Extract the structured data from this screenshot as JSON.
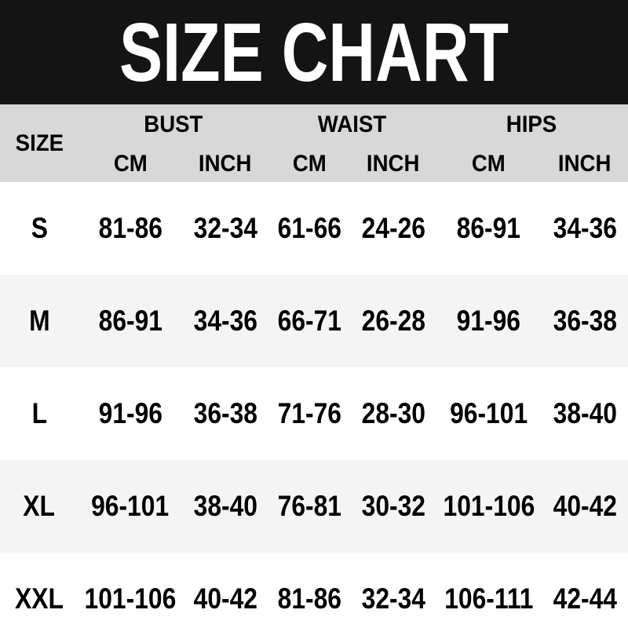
{
  "chart_data": {
    "type": "table",
    "title": "SIZE CHART",
    "header": {
      "size_label": "SIZE",
      "groups": [
        {
          "label": "BUST",
          "sub": [
            "CM",
            "INCH"
          ]
        },
        {
          "label": "WAIST",
          "sub": [
            "CM",
            "INCH"
          ]
        },
        {
          "label": "HIPS",
          "sub": [
            "CM",
            "INCH"
          ]
        }
      ]
    },
    "columns": [
      "SIZE",
      "BUST CM",
      "BUST INCH",
      "WAIST CM",
      "WAIST INCH",
      "HIPS CM",
      "HIPS INCH"
    ],
    "rows": [
      [
        "S",
        "81-86",
        "32-34",
        "61-66",
        "24-26",
        "86-91",
        "34-36"
      ],
      [
        "M",
        "86-91",
        "34-36",
        "66-71",
        "26-28",
        "91-96",
        "36-38"
      ],
      [
        "L",
        "91-96",
        "36-38",
        "71-76",
        "28-30",
        "96-101",
        "38-40"
      ],
      [
        "XL",
        "96-101",
        "38-40",
        "76-81",
        "30-32",
        "101-106",
        "40-42"
      ],
      [
        "XXL",
        "101-106",
        "40-42",
        "81-86",
        "32-34",
        "106-111",
        "42-44"
      ]
    ]
  },
  "colors": {
    "title_bar_bg": "#141414",
    "title_text": "#ffffff",
    "header_bg": "#d8d8d8",
    "stripe_bg": "#f4f4f4",
    "row_bg": "#ffffff",
    "body_text": "#000000"
  }
}
